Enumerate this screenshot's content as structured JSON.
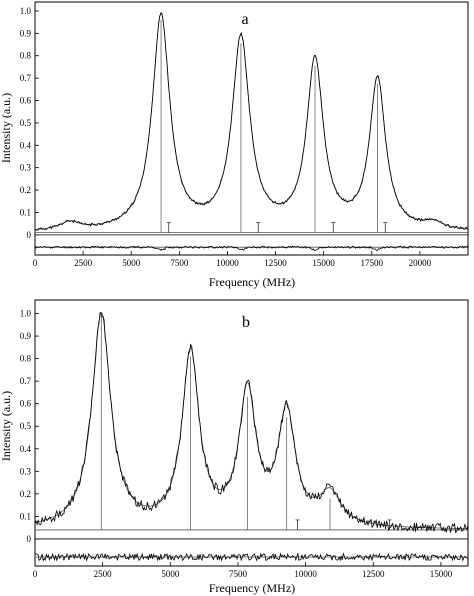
{
  "chart_data": [
    {
      "panel_label": "a",
      "type": "line",
      "xlabel": "Frequency (MHz)",
      "ylabel": "Intensity (a.u.)",
      "xlim": [
        0,
        22500
      ],
      "ylim": [
        -0.09,
        1.04
      ],
      "x_ticks": [
        0,
        2500,
        5000,
        7500,
        10000,
        12500,
        15000,
        17500,
        20000
      ],
      "x_tick_labels": [
        "0",
        "2500",
        "5000",
        "7500",
        "10000",
        "12500",
        "15000",
        "17500",
        "20000"
      ],
      "y_ticks": [
        0,
        0.1,
        0.2,
        0.3,
        0.4,
        0.5,
        0.6,
        0.7,
        0.8,
        0.9,
        1.0
      ],
      "y_tick_labels": [
        "0",
        "0.1",
        "0.2",
        "0.3",
        "0.4",
        "0.5",
        "0.6",
        "0.7",
        "0.8",
        "0.9",
        "1.0"
      ],
      "baseline": 0.01,
      "residual_offset": -0.055,
      "peaks": [
        {
          "x": 1800,
          "height": 0.035,
          "width": 600
        },
        {
          "x": 6550,
          "height": 0.96,
          "width": 550
        },
        {
          "x": 10700,
          "height": 0.855,
          "width": 550
        },
        {
          "x": 14550,
          "height": 0.755,
          "width": 520
        },
        {
          "x": 17800,
          "height": 0.675,
          "width": 500
        },
        {
          "x": 20700,
          "height": 0.03,
          "width": 600
        }
      ],
      "sticks": [
        {
          "x": 6550,
          "height": 0.96
        },
        {
          "x": 10700,
          "height": 0.855
        },
        {
          "x": 14550,
          "height": 0.755
        },
        {
          "x": 17800,
          "height": 0.675
        }
      ],
      "markers": [
        6950,
        11600,
        15500,
        18200
      ],
      "residual_dips": [
        6550,
        10700,
        14550,
        17800
      ]
    },
    {
      "panel_label": "b",
      "type": "line",
      "xlabel": "Frequency (MHz)",
      "ylabel": "Intensity (a.u.)",
      "xlim": [
        0,
        16000
      ],
      "ylim": [
        -0.12,
        1.06
      ],
      "x_ticks": [
        0,
        2500,
        5000,
        7500,
        10000,
        12500,
        15000
      ],
      "x_tick_labels": [
        "0",
        "2500",
        "5000",
        "7500",
        "10000",
        "12500",
        "15000"
      ],
      "y_ticks": [
        0,
        0.1,
        0.2,
        0.3,
        0.4,
        0.5,
        0.6,
        0.7,
        0.8,
        0.9,
        1.0
      ],
      "y_tick_labels": [
        "0",
        "0.1",
        "0.2",
        "0.3",
        "0.4",
        "0.5",
        "0.6",
        "0.7",
        "0.8",
        "0.9",
        "1.0"
      ],
      "baseline": 0.04,
      "residual_offset": -0.08,
      "peaks": [
        {
          "x": 2450,
          "height": 0.95,
          "width": 420
        },
        {
          "x": 5750,
          "height": 0.77,
          "width": 380
        },
        {
          "x": 7850,
          "height": 0.59,
          "width": 380
        },
        {
          "x": 9300,
          "height": 0.5,
          "width": 380
        },
        {
          "x": 10900,
          "height": 0.145,
          "width": 500
        }
      ],
      "sticks": [
        {
          "x": 2450,
          "height": 0.99
        },
        {
          "x": 5750,
          "height": 0.81
        },
        {
          "x": 7850,
          "height": 0.63
        },
        {
          "x": 9300,
          "height": 0.54
        },
        {
          "x": 10900,
          "height": 0.18
        }
      ],
      "markers": [
        9700,
        13100
      ],
      "residual_dips": []
    }
  ]
}
